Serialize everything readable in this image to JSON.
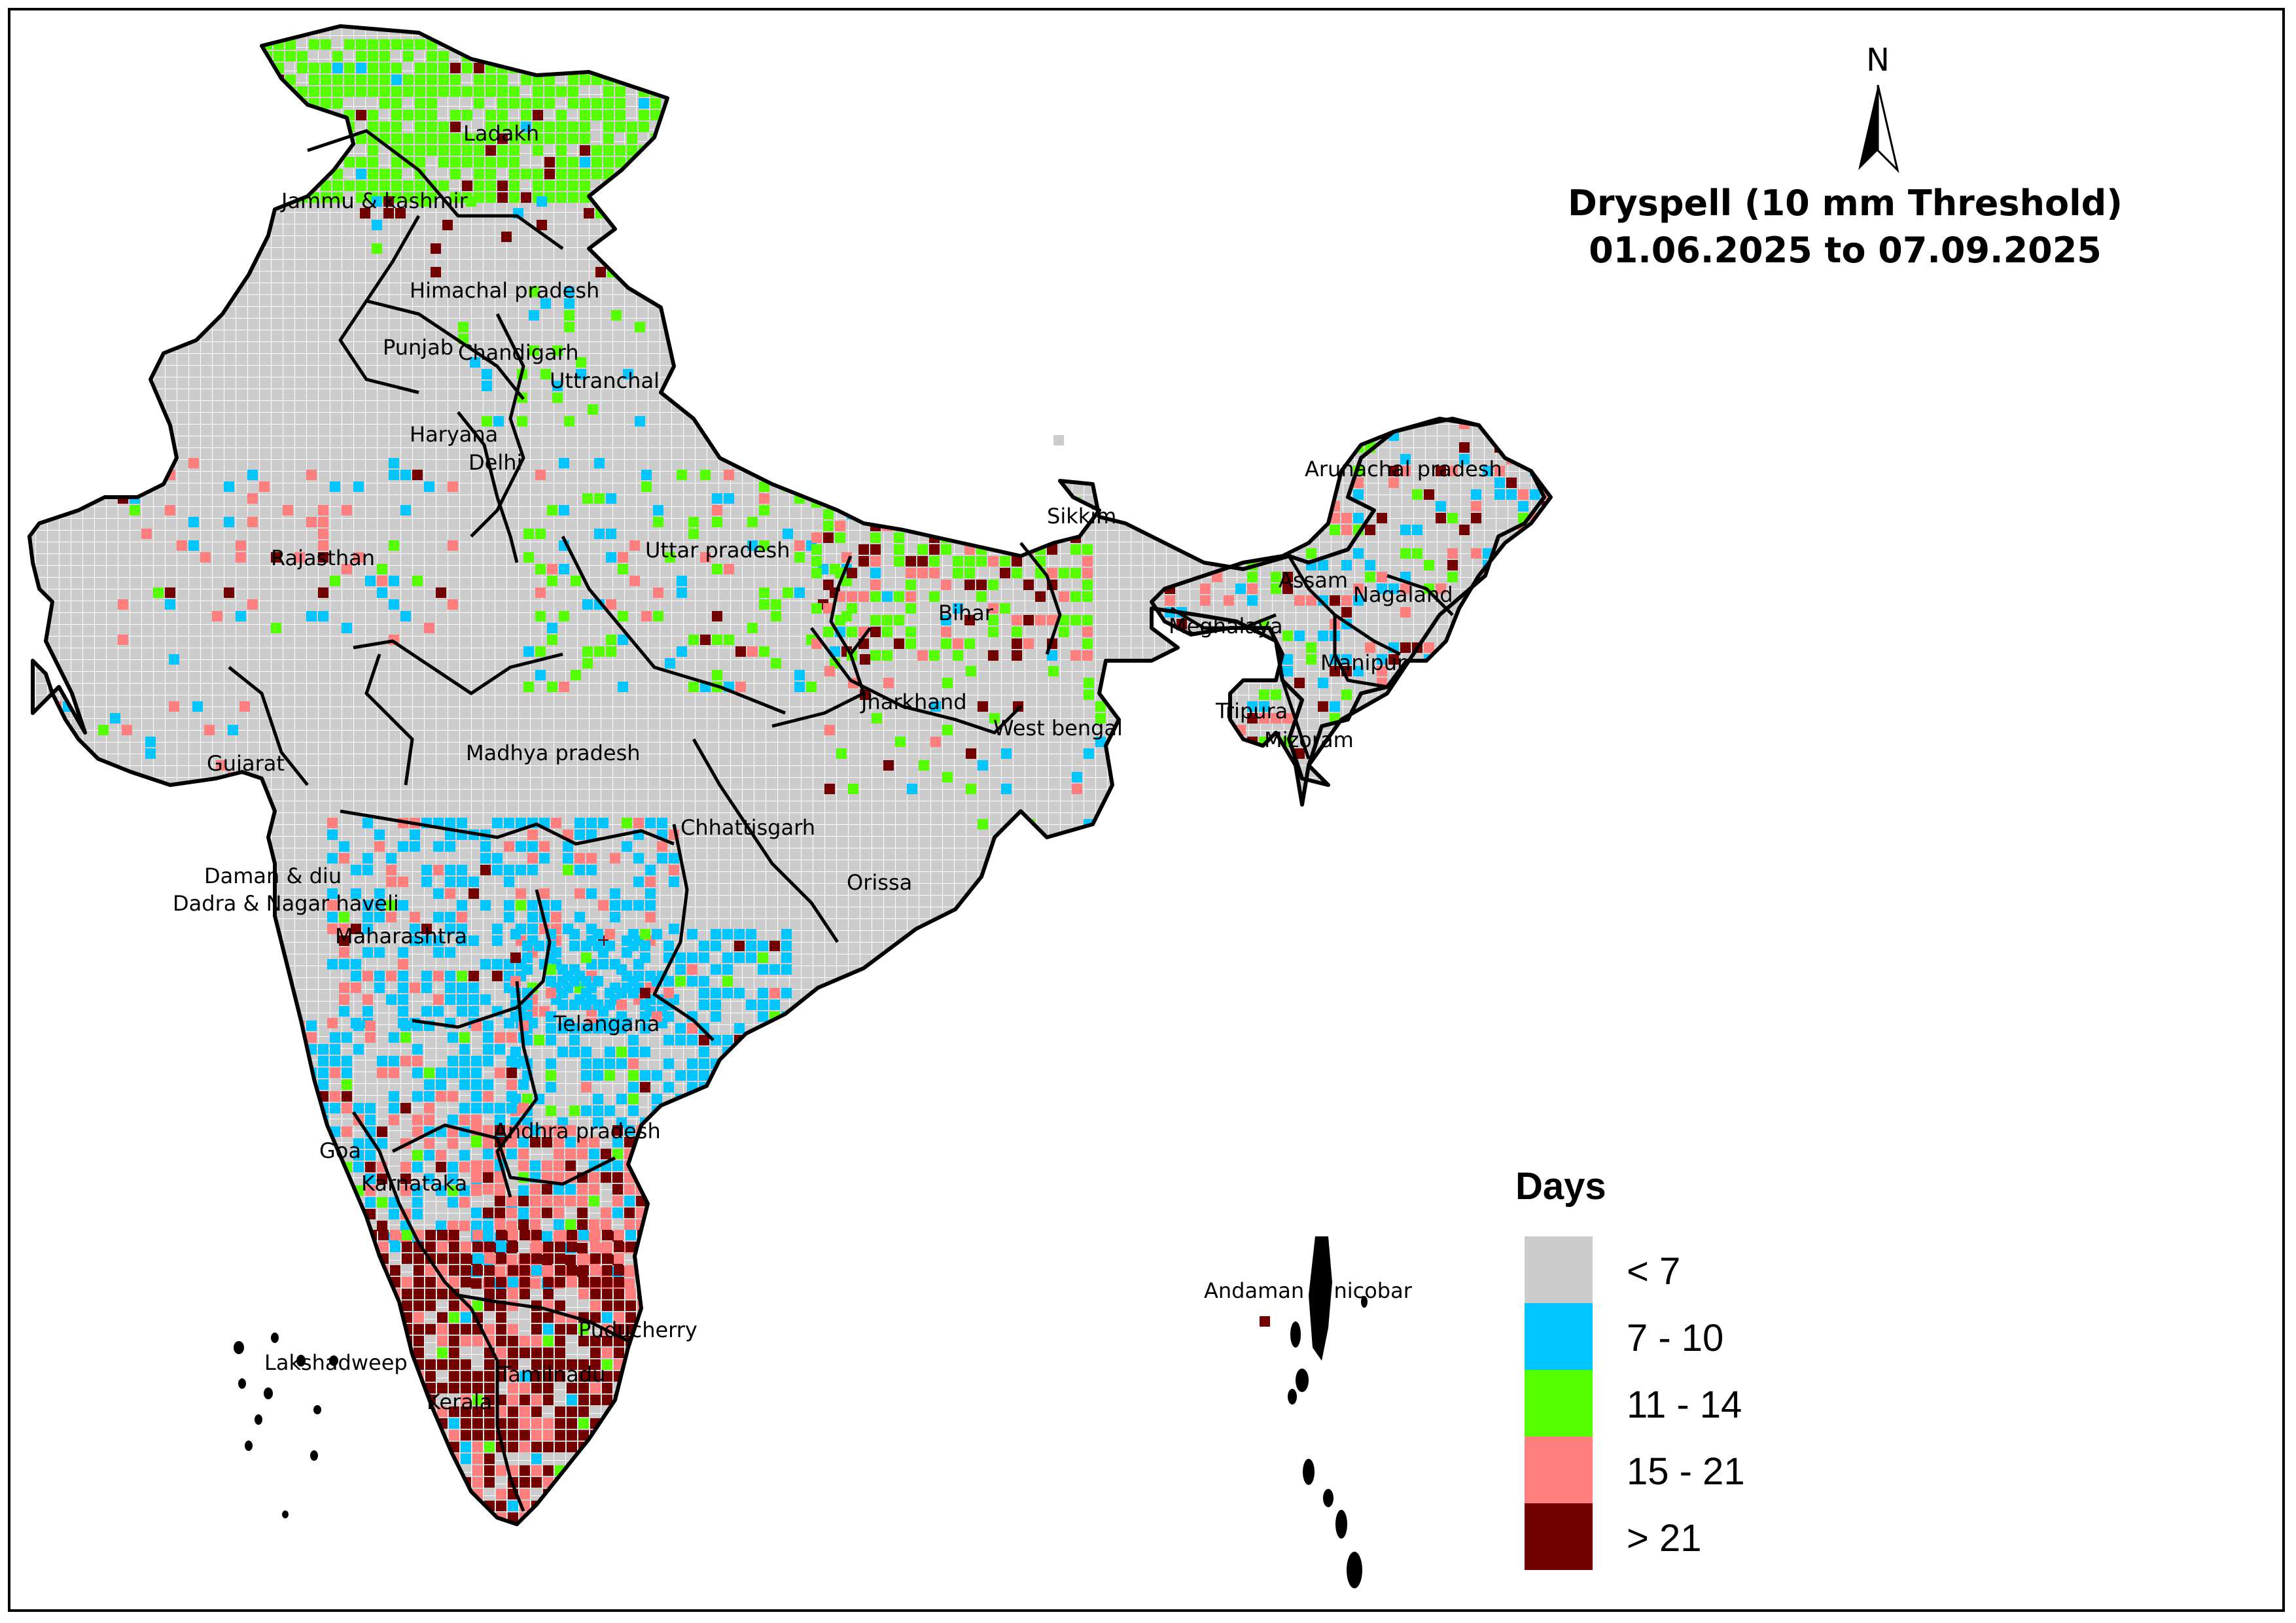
{
  "title": {
    "line1": "Dryspell (10 mm Threshold)",
    "line2": "01.06.2025 to 07.09.2025"
  },
  "north_arrow": {
    "label": "N",
    "icon": "north-arrow-icon"
  },
  "legend": {
    "title": "Days",
    "items": [
      {
        "label": "< 7",
        "color": "#cccccc"
      },
      {
        "label": "7 - 10",
        "color": "#00c5ff"
      },
      {
        "label": "11 - 14",
        "color": "#55ff00"
      },
      {
        "label": "15 - 21",
        "color": "#ff7f7f"
      },
      {
        "label": "> 21",
        "color": "#730000"
      }
    ]
  },
  "map": {
    "region_labels": [
      "Ladakh",
      "Jammu & kashmir",
      "Himachal pradesh",
      "Punjab",
      "Chandigarh",
      "Uttranchal",
      "Haryana",
      "Delhi",
      "Rajasthan",
      "Uttar pradesh",
      "Sikkim",
      "Arunachal pradesh",
      "Assam",
      "Nagaland",
      "Meghalaya",
      "Bihar",
      "Manipur",
      "Jharkhand",
      "Tripura",
      "Mizoram",
      "West bengal",
      "Gujarat",
      "Madhya pradesh",
      "Chhattisgarh",
      "Orissa",
      "Daman & diu",
      "Dadra & Nagar haveli",
      "Maharashtra",
      "Telangana",
      "Andhra pradesh",
      "Goa",
      "Karnataka",
      "Puducherry",
      "Lakshadweep",
      "Tamilnadu",
      "Kerala",
      "Andaman & nicobar"
    ]
  }
}
